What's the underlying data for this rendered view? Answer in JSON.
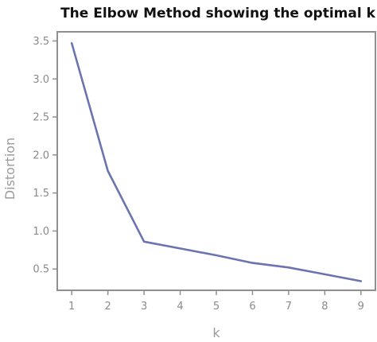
{
  "chart_data": {
    "type": "line",
    "title": "The Elbow Method showing the optimal k",
    "xlabel": "k",
    "ylabel": "Distortion",
    "x": [
      1,
      2,
      3,
      4,
      5,
      6,
      7,
      8,
      9
    ],
    "xticks": [
      "1",
      "2",
      "3",
      "4",
      "5",
      "6",
      "7",
      "8",
      "9"
    ],
    "yticks": [
      "0.5",
      "1.0",
      "1.5",
      "2.0",
      "2.5",
      "3.0",
      "3.5"
    ],
    "ytick_values": [
      0.5,
      1.0,
      1.5,
      2.0,
      2.5,
      3.0,
      3.5
    ],
    "xlim": [
      0.6,
      9.4
    ],
    "ylim": [
      0.22,
      3.62
    ],
    "grid": false,
    "series": [
      {
        "values": [
          3.47,
          1.79,
          0.86,
          0.77,
          0.68,
          0.58,
          0.52,
          0.43,
          0.34
        ]
      }
    ],
    "colors": {
      "line": "#6b74b0",
      "frame": "#8f8f8f"
    }
  }
}
